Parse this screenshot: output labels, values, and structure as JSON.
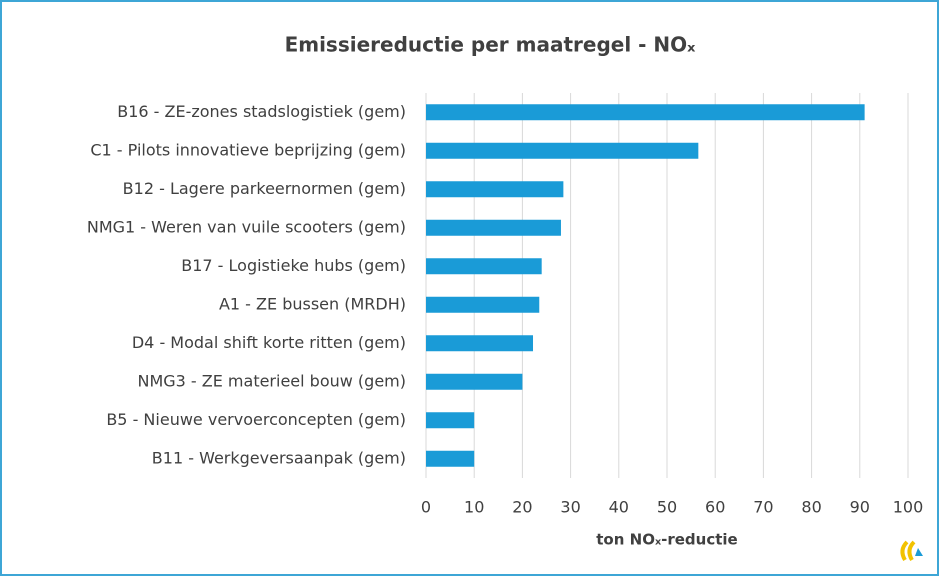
{
  "chart_data": {
    "type": "barh",
    "title": "Emissiereductie per maatregel - NOₓ",
    "xlabel": "ton NOₓ-reductie",
    "categories": [
      "B16 - ZE-zones stadslogistiek (gem)",
      "C1 - Pilots innovatieve beprijzing (gem)",
      "B12 - Lagere parkeernormen (gem)",
      "NMG1 - Weren van vuile scooters (gem)",
      "B17 - Logistieke hubs (gem)",
      "A1 - ZE bussen (MRDH)",
      "D4 - Modal shift korte ritten (gem)",
      "NMG3 - ZE materieel bouw (gem)",
      "B5 - Nieuwe vervoerconcepten (gem)",
      "B11 - Werkgeversaanpak (gem)"
    ],
    "values": [
      91,
      56.5,
      28.5,
      28,
      24,
      23.5,
      22.2,
      20,
      10,
      10
    ],
    "color": "#1a9bd7",
    "xlim": [
      0,
      100
    ],
    "xticks": [
      0,
      10,
      20,
      30,
      40,
      50,
      60,
      70,
      80,
      90,
      100
    ],
    "grid": true
  }
}
